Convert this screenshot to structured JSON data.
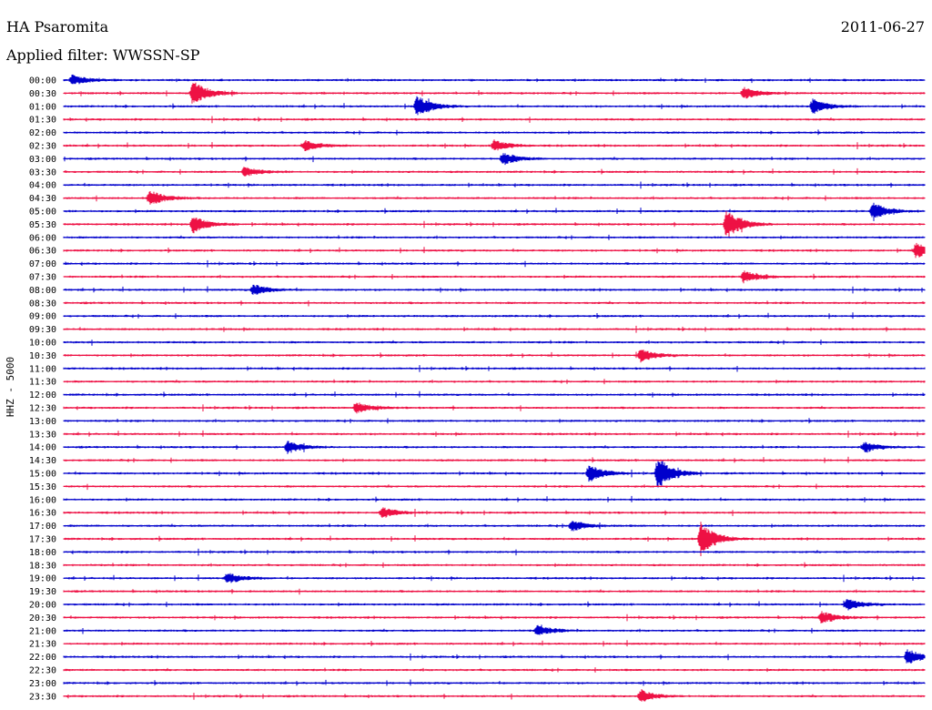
{
  "header": {
    "station": "HA Psaromita",
    "date": "2011-06-27",
    "filter": "Applied filter: WWSSN-SP"
  },
  "chart_data": {
    "type": "line",
    "title": "HA Psaromita",
    "ylabel": "HHZ - 5000",
    "row_labels": [
      "00:00",
      "00:30",
      "01:00",
      "01:30",
      "02:00",
      "02:30",
      "03:00",
      "03:30",
      "04:00",
      "04:30",
      "05:00",
      "05:30",
      "06:00",
      "06:30",
      "07:00",
      "07:30",
      "08:00",
      "08:30",
      "09:00",
      "09:30",
      "10:00",
      "10:30",
      "11:00",
      "11:30",
      "12:00",
      "12:30",
      "13:00",
      "13:30",
      "14:00",
      "14:30",
      "15:00",
      "15:30",
      "16:00",
      "16:30",
      "17:00",
      "17:30",
      "18:00",
      "18:30",
      "19:00",
      "19:30",
      "20:00",
      "20:30",
      "21:00",
      "21:30",
      "22:00",
      "22:30",
      "23:00",
      "23:30"
    ],
    "trace_colors": [
      "#0000cc",
      "#ee1144"
    ],
    "events": [
      {
        "row": 0,
        "pos": 0.01,
        "amp": 0.6
      },
      {
        "row": 1,
        "pos": 0.15,
        "amp": 1.4
      },
      {
        "row": 1,
        "pos": 0.79,
        "amp": 0.7
      },
      {
        "row": 2,
        "pos": 0.41,
        "amp": 1.2
      },
      {
        "row": 2,
        "pos": 0.87,
        "amp": 0.8
      },
      {
        "row": 5,
        "pos": 0.28,
        "amp": 0.6
      },
      {
        "row": 5,
        "pos": 0.5,
        "amp": 0.6
      },
      {
        "row": 6,
        "pos": 0.51,
        "amp": 0.7
      },
      {
        "row": 7,
        "pos": 0.21,
        "amp": 0.6
      },
      {
        "row": 9,
        "pos": 0.1,
        "amp": 0.9
      },
      {
        "row": 10,
        "pos": 0.94,
        "amp": 0.9
      },
      {
        "row": 11,
        "pos": 0.15,
        "amp": 1.0
      },
      {
        "row": 11,
        "pos": 0.77,
        "amp": 1.7
      },
      {
        "row": 13,
        "pos": 0.99,
        "amp": 0.9
      },
      {
        "row": 15,
        "pos": 0.79,
        "amp": 0.7
      },
      {
        "row": 16,
        "pos": 0.22,
        "amp": 0.6
      },
      {
        "row": 21,
        "pos": 0.67,
        "amp": 0.7
      },
      {
        "row": 25,
        "pos": 0.34,
        "amp": 0.6
      },
      {
        "row": 28,
        "pos": 0.26,
        "amp": 0.7
      },
      {
        "row": 28,
        "pos": 0.93,
        "amp": 0.6
      },
      {
        "row": 30,
        "pos": 0.61,
        "amp": 1.0
      },
      {
        "row": 30,
        "pos": 0.69,
        "amp": 1.8
      },
      {
        "row": 33,
        "pos": 0.37,
        "amp": 0.6
      },
      {
        "row": 34,
        "pos": 0.59,
        "amp": 0.6
      },
      {
        "row": 35,
        "pos": 0.74,
        "amp": 1.9
      },
      {
        "row": 38,
        "pos": 0.19,
        "amp": 0.6
      },
      {
        "row": 40,
        "pos": 0.91,
        "amp": 0.6
      },
      {
        "row": 41,
        "pos": 0.88,
        "amp": 0.7
      },
      {
        "row": 42,
        "pos": 0.55,
        "amp": 0.6
      },
      {
        "row": 44,
        "pos": 0.98,
        "amp": 0.9
      },
      {
        "row": 47,
        "pos": 0.67,
        "amp": 0.7
      }
    ]
  }
}
